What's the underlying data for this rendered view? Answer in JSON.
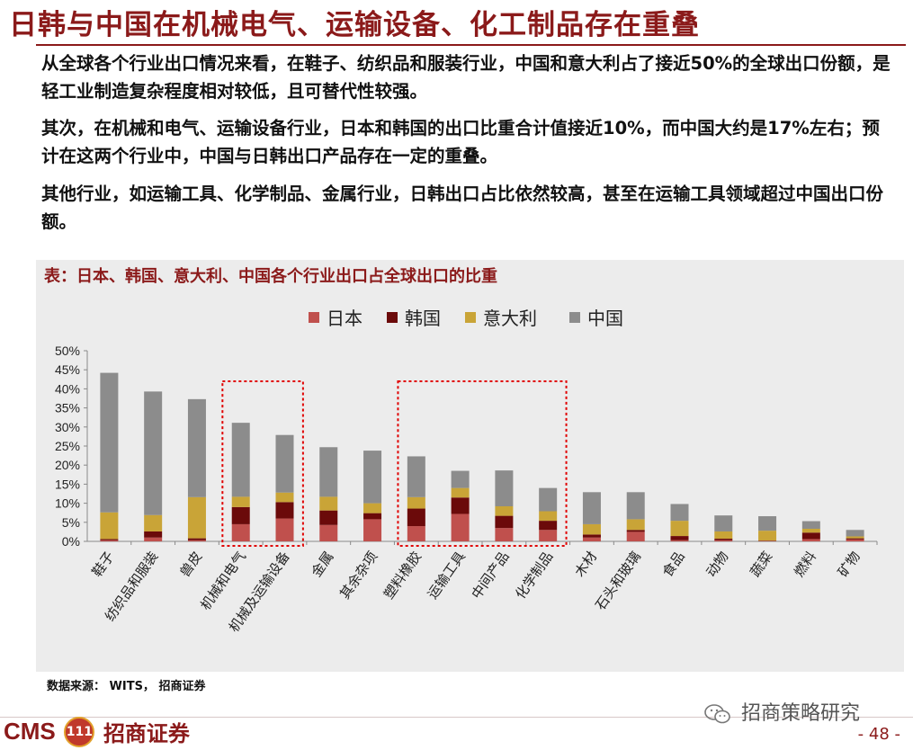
{
  "title": "日韩与中国在机械电气、运输设备、化工制品存在重叠",
  "paragraphs": [
    "从全球各个行业出口情况来看，在鞋子、纺织品和服装行业，中国和意大利占了接近50%的全球出口份额，是轻工业制造复杂程度相对较低，且可替代性较强。",
    "其次，在机械和电气、运输设备行业，日本和韩国的出口比重合计值接近10%，而中国大约是17%左右；预计在这两个行业中，中国与日韩出口产品存在一定的重叠。",
    "其他行业，如运输工具、化学制品、金属行业，日韩出口占比依然较高，甚至在运输工具领域超过中国出口份额。"
  ],
  "chart_title": "表：日本、韩国、意大利、中国各个行业出口占全球出口的比重",
  "source": "数据来源： WITS， 招商证券",
  "logo": {
    "cms": "CMS",
    "badge": "111",
    "name": "招商证券"
  },
  "wechat": "招商策略研究",
  "page_number": "- 48 -",
  "colors": {
    "japan": "#c0504d",
    "korea": "#6b0a0a",
    "italy": "#c9a437",
    "china": "#8c8c8c",
    "accent": "#8b1a1a",
    "highlight": "#e00000"
  },
  "chart_data": {
    "type": "bar",
    "stacked": true,
    "categories": [
      "鞋子",
      "纺织品和服装",
      "兽皮",
      "机械和电气",
      "机械及运输设备",
      "金属",
      "其余杂项",
      "塑料橡胶",
      "运输工具",
      "中间产品",
      "化学制品",
      "木材",
      "石头和玻璃",
      "食品",
      "动物",
      "蔬菜",
      "燃料",
      "矿物"
    ],
    "series": [
      {
        "name": "日本",
        "color": "#c0504d",
        "values": [
          0.3,
          1.0,
          0.3,
          4.5,
          6.0,
          4.3,
          5.8,
          4.0,
          7.2,
          3.5,
          3.0,
          1.0,
          2.5,
          0.3,
          0.3,
          0.1,
          0.6,
          0.5
        ]
      },
      {
        "name": "韩国",
        "color": "#6b0a0a",
        "values": [
          0.3,
          1.6,
          0.5,
          4.5,
          4.3,
          3.8,
          1.6,
          4.6,
          4.3,
          3.2,
          2.4,
          0.8,
          0.5,
          1.1,
          0.4,
          0.1,
          1.7,
          0.3
        ]
      },
      {
        "name": "意大利",
        "color": "#c9a437",
        "values": [
          7.0,
          4.3,
          10.8,
          2.7,
          2.5,
          3.6,
          2.6,
          3.0,
          2.5,
          2.5,
          2.5,
          2.7,
          2.8,
          4.0,
          1.9,
          2.6,
          1.0,
          0.5
        ]
      },
      {
        "name": "中国",
        "color": "#8c8c8c",
        "values": [
          36.6,
          32.4,
          25.7,
          19.4,
          15.1,
          13.0,
          13.8,
          10.7,
          4.5,
          9.4,
          6.1,
          8.4,
          7.1,
          4.4,
          4.2,
          3.8,
          2.0,
          1.7
        ]
      }
    ],
    "ylim": [
      0,
      50
    ],
    "yticks": [
      "0%",
      "5%",
      "10%",
      "15%",
      "20%",
      "25%",
      "30%",
      "35%",
      "40%",
      "45%",
      "50%"
    ],
    "ytick_step": 5,
    "legend_position": "top-center",
    "grid": false,
    "highlight_groups": [
      [
        3,
        4
      ],
      [
        7,
        10
      ]
    ]
  }
}
